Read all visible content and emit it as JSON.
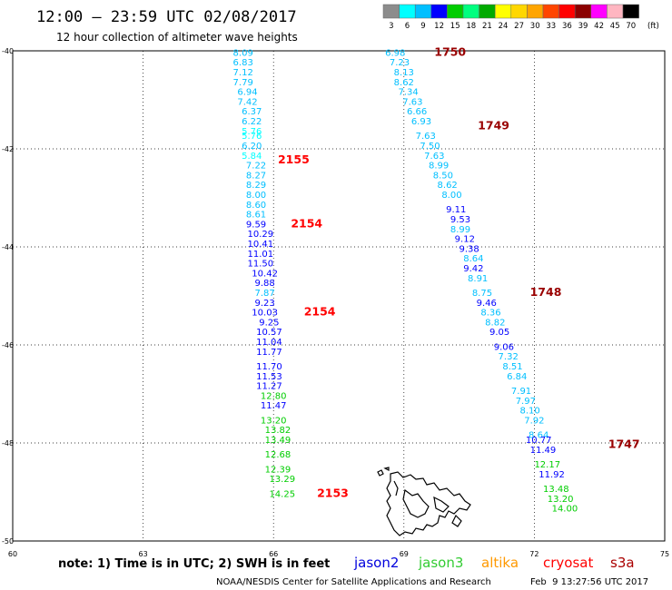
{
  "header": {
    "title": "12:00 – 23:59 UTC 02/08/2017",
    "subtitle": "12 hour collection of altimeter wave heights"
  },
  "legend": {
    "values": [
      "3",
      "6",
      "9",
      "12",
      "15",
      "18",
      "21",
      "24",
      "27",
      "30",
      "33",
      "36",
      "39",
      "42",
      "45",
      "70"
    ],
    "unit": "(ft)",
    "colors": [
      "#8c8c8c",
      "#00ffff",
      "#00bfff",
      "#0000ff",
      "#00cd00",
      "#00ff7f",
      "#00aa00",
      "#ffff00",
      "#ffd700",
      "#ffa500",
      "#ff4500",
      "#ff0000",
      "#8b0000",
      "#ff00ff",
      "#ffb6c1",
      "#000000"
    ]
  },
  "footer": {
    "note": "note: 1) Time is in UTC; 2) SWH is in feet",
    "satellites": [
      {
        "name": "jason2",
        "color": "#0000dd"
      },
      {
        "name": "jason3",
        "color": "#33cc33"
      },
      {
        "name": "altika",
        "color": "#ff9900"
      },
      {
        "name": "cryosat",
        "color": "#ff0000"
      },
      {
        "name": "s3a",
        "color": "#aa0000"
      }
    ],
    "credit": "NOAA/NESDIS Center for Satellite Applications and Research",
    "timestamp": "Feb  9 13:27:56 UTC 2017"
  },
  "chart_data": {
    "type": "scatter",
    "xlim": [
      60,
      75
    ],
    "ylim": [
      -50,
      -40
    ],
    "x_ticks": [
      "60",
      "63",
      "66",
      "69",
      "72",
      "75"
    ],
    "y_ticks": [
      "-40",
      "-42",
      "-44",
      "-46",
      "-48",
      "-50"
    ],
    "grid": true,
    "color_scale": [
      {
        "max": 3,
        "color": "#8c8c8c"
      },
      {
        "max": 6,
        "color": "#00ffff"
      },
      {
        "max": 9,
        "color": "#00bfff"
      },
      {
        "max": 12,
        "color": "#0000ff"
      },
      {
        "max": 15,
        "color": "#00cd00"
      },
      {
        "max": 18,
        "color": "#00ff7f"
      },
      {
        "max": 21,
        "color": "#00aa00"
      }
    ],
    "series": [
      {
        "name": "jason2",
        "points": [
          {
            "x": 65.3,
            "y": -40.1,
            "v": "8.09"
          },
          {
            "x": 65.3,
            "y": -40.3,
            "v": "6.83"
          },
          {
            "x": 65.3,
            "y": -40.5,
            "v": "7.12"
          },
          {
            "x": 65.3,
            "y": -40.7,
            "v": "7.79"
          },
          {
            "x": 65.4,
            "y": -40.9,
            "v": "6.94"
          },
          {
            "x": 65.4,
            "y": -41.1,
            "v": "7.42"
          },
          {
            "x": 65.5,
            "y": -41.3,
            "v": "6.37"
          },
          {
            "x": 65.5,
            "y": -41.5,
            "v": "6.22"
          },
          {
            "x": 65.5,
            "y": -41.7,
            "v": "5.76"
          },
          {
            "x": 65.5,
            "y": -41.8,
            "v": "5.76"
          },
          {
            "x": 65.5,
            "y": -42.0,
            "v": "6.20"
          },
          {
            "x": 65.5,
            "y": -42.2,
            "v": "5.84"
          },
          {
            "x": 65.6,
            "y": -42.4,
            "v": "7.22"
          },
          {
            "x": 65.6,
            "y": -42.6,
            "v": "8.27"
          },
          {
            "x": 65.6,
            "y": -42.8,
            "v": "8.29"
          },
          {
            "x": 65.6,
            "y": -43.0,
            "v": "8.00"
          },
          {
            "x": 65.6,
            "y": -43.2,
            "v": "8.60"
          },
          {
            "x": 65.6,
            "y": -43.4,
            "v": "8.61"
          },
          {
            "x": 65.6,
            "y": -43.6,
            "v": "9.59"
          },
          {
            "x": 65.7,
            "y": -43.8,
            "v": "10.29"
          },
          {
            "x": 65.7,
            "y": -44.0,
            "v": "10.41"
          },
          {
            "x": 65.7,
            "y": -44.2,
            "v": "11.01"
          },
          {
            "x": 65.7,
            "y": -44.4,
            "v": "11.50"
          },
          {
            "x": 65.8,
            "y": -44.6,
            "v": "10.42"
          },
          {
            "x": 65.8,
            "y": -44.8,
            "v": "9.88"
          },
          {
            "x": 65.8,
            "y": -45.0,
            "v": "7.87"
          },
          {
            "x": 65.8,
            "y": -45.2,
            "v": "9.23"
          },
          {
            "x": 65.8,
            "y": -45.4,
            "v": "10.03"
          },
          {
            "x": 65.9,
            "y": -45.6,
            "v": "9.25"
          },
          {
            "x": 65.9,
            "y": -45.8,
            "v": "10.57"
          },
          {
            "x": 65.9,
            "y": -46.0,
            "v": "11.04"
          },
          {
            "x": 65.9,
            "y": -46.2,
            "v": "11.77"
          },
          {
            "x": 65.9,
            "y": -46.5,
            "v": "11.70"
          },
          {
            "x": 65.9,
            "y": -46.7,
            "v": "11.53"
          },
          {
            "x": 65.9,
            "y": -46.9,
            "v": "11.27"
          },
          {
            "x": 66.0,
            "y": -47.1,
            "v": "12.80"
          },
          {
            "x": 66.0,
            "y": -47.3,
            "v": "11.47"
          },
          {
            "x": 66.0,
            "y": -47.6,
            "v": "13.20"
          },
          {
            "x": 66.1,
            "y": -47.8,
            "v": "13.82"
          },
          {
            "x": 66.1,
            "y": -48.0,
            "v": "13.49"
          },
          {
            "x": 66.1,
            "y": -48.3,
            "v": "12.68"
          },
          {
            "x": 66.1,
            "y": -48.6,
            "v": "12.39"
          },
          {
            "x": 66.2,
            "y": -48.8,
            "v": "13.29"
          },
          {
            "x": 66.2,
            "y": -49.1,
            "v": "14.25"
          }
        ],
        "time_labels": [
          {
            "x": 66.1,
            "y": -42.3,
            "t": "2155",
            "color": "#ff0000"
          },
          {
            "x": 66.4,
            "y": -43.6,
            "t": "2154",
            "color": "#ff0000"
          },
          {
            "x": 66.7,
            "y": -45.4,
            "t": "2154",
            "color": "#ff0000"
          },
          {
            "x": 67.0,
            "y": -49.1,
            "t": "2153",
            "color": "#ff0000"
          }
        ]
      },
      {
        "name": "s3a",
        "points": [
          {
            "x": 68.8,
            "y": -40.1,
            "v": "6.98"
          },
          {
            "x": 68.9,
            "y": -40.3,
            "v": "7.23"
          },
          {
            "x": 69.0,
            "y": -40.5,
            "v": "8.13"
          },
          {
            "x": 69.0,
            "y": -40.7,
            "v": "8.62"
          },
          {
            "x": 69.1,
            "y": -40.9,
            "v": "7.34"
          },
          {
            "x": 69.2,
            "y": -41.1,
            "v": "7.63"
          },
          {
            "x": 69.3,
            "y": -41.3,
            "v": "6.66"
          },
          {
            "x": 69.4,
            "y": -41.5,
            "v": "6.93"
          },
          {
            "x": 69.5,
            "y": -41.8,
            "v": "7.63"
          },
          {
            "x": 69.6,
            "y": -42.0,
            "v": "7.50"
          },
          {
            "x": 69.7,
            "y": -42.2,
            "v": "7.63"
          },
          {
            "x": 69.8,
            "y": -42.4,
            "v": "8.99"
          },
          {
            "x": 69.9,
            "y": -42.6,
            "v": "8.50"
          },
          {
            "x": 70.0,
            "y": -42.8,
            "v": "8.62"
          },
          {
            "x": 70.1,
            "y": -43.0,
            "v": "8.00"
          },
          {
            "x": 70.2,
            "y": -43.3,
            "v": "9.11"
          },
          {
            "x": 70.3,
            "y": -43.5,
            "v": "9.53"
          },
          {
            "x": 70.3,
            "y": -43.7,
            "v": "8.99"
          },
          {
            "x": 70.4,
            "y": -43.9,
            "v": "9.12"
          },
          {
            "x": 70.5,
            "y": -44.1,
            "v": "9.38"
          },
          {
            "x": 70.6,
            "y": -44.3,
            "v": "8.64"
          },
          {
            "x": 70.6,
            "y": -44.5,
            "v": "9.42"
          },
          {
            "x": 70.7,
            "y": -44.7,
            "v": "8.91"
          },
          {
            "x": 70.8,
            "y": -45.0,
            "v": "8.75"
          },
          {
            "x": 70.9,
            "y": -45.2,
            "v": "9.46"
          },
          {
            "x": 71.0,
            "y": -45.4,
            "v": "8.36"
          },
          {
            "x": 71.1,
            "y": -45.6,
            "v": "8.82"
          },
          {
            "x": 71.2,
            "y": -45.8,
            "v": "9.05"
          },
          {
            "x": 71.3,
            "y": -46.1,
            "v": "9.06"
          },
          {
            "x": 71.4,
            "y": -46.3,
            "v": "7.32"
          },
          {
            "x": 71.5,
            "y": -46.5,
            "v": "8.51"
          },
          {
            "x": 71.6,
            "y": -46.7,
            "v": "6.84"
          },
          {
            "x": 71.7,
            "y": -47.0,
            "v": "7.91"
          },
          {
            "x": 71.8,
            "y": -47.2,
            "v": "7.97"
          },
          {
            "x": 71.9,
            "y": -47.4,
            "v": "8.10"
          },
          {
            "x": 72.0,
            "y": -47.6,
            "v": "7.92"
          },
          {
            "x": 72.1,
            "y": -47.9,
            "v": "8.64"
          },
          {
            "x": 72.1,
            "y": -48.0,
            "v": "10.77"
          },
          {
            "x": 72.2,
            "y": -48.2,
            "v": "11.49"
          },
          {
            "x": 72.3,
            "y": -48.5,
            "v": "12.17"
          },
          {
            "x": 72.4,
            "y": -48.7,
            "v": "11.92"
          },
          {
            "x": 72.5,
            "y": -49.0,
            "v": "13.48"
          },
          {
            "x": 72.6,
            "y": -49.2,
            "v": "13.20"
          },
          {
            "x": 72.7,
            "y": -49.4,
            "v": "14.00"
          }
        ],
        "time_labels": [
          {
            "x": 69.7,
            "y": -40.1,
            "t": "1750",
            "color": "#990000"
          },
          {
            "x": 70.7,
            "y": -41.6,
            "t": "1749",
            "color": "#990000"
          },
          {
            "x": 71.9,
            "y": -45.0,
            "t": "1748",
            "color": "#990000"
          },
          {
            "x": 73.7,
            "y": -48.1,
            "t": "1747",
            "color": "#990000"
          }
        ]
      }
    ]
  }
}
